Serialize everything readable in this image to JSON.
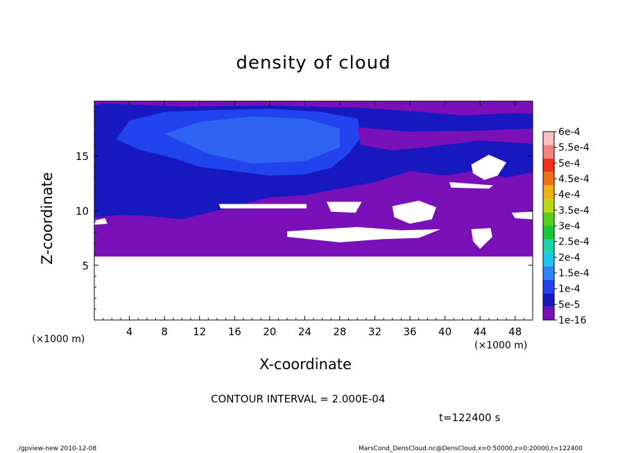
{
  "chart_data": {
    "type": "heatmap",
    "title": "density of cloud",
    "xlabel": "X-coordinate",
    "ylabel": "Z-coordinate",
    "x_unit_left": "(×1000 m)",
    "x_unit_right": "(×1000 m)",
    "xlim": [
      0,
      50
    ],
    "ylim": [
      0,
      20
    ],
    "x_ticks": [
      4,
      8,
      12,
      16,
      20,
      24,
      28,
      32,
      36,
      40,
      44,
      48
    ],
    "y_ticks": [
      5,
      10,
      15
    ],
    "colorbar": {
      "labels": [
        "1e-16",
        "5e-5",
        "1e-4",
        "1.5e-4",
        "2e-4",
        "2.5e-4",
        "3e-4",
        "3.5e-4",
        "4e-4",
        "4.5e-4",
        "5e-4",
        "5.5e-4",
        "6e-4"
      ],
      "colors": [
        "#7a10b8",
        "#1818c0",
        "#2244ee",
        "#2a86f6",
        "#1ec3f0",
        "#18d2a8",
        "#18c838",
        "#58d018",
        "#b8d818",
        "#f0b018",
        "#f07018",
        "#f03018",
        "#f48080",
        "#f8c0c0"
      ]
    },
    "region_values": {
      "below_cloud_base": "< 1e-16",
      "lower_band": "1e-16",
      "mid_band": "5e-5",
      "upper_core": "1e-4"
    },
    "contour_interval": "CONTOUR INTERVAL = 2.000E-04",
    "time": "t=122400 s"
  },
  "footer": {
    "left": "./gpview-new  2010-12-08",
    "right": "MarsCond_DensCloud.nc@DensCloud,x=0:50000,z=0:20000,t=122400"
  }
}
